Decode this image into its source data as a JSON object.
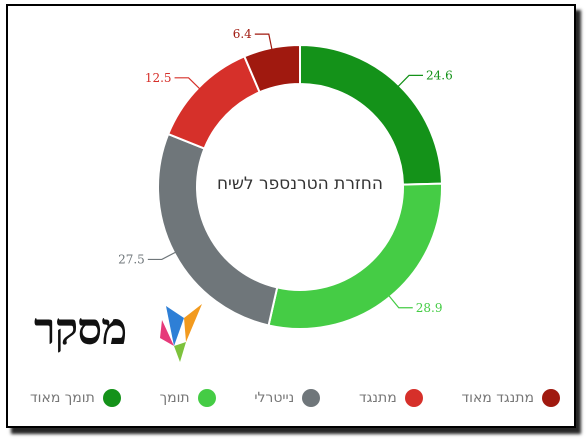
{
  "chart_data": {
    "type": "donut",
    "title": "החזרת הטרנספר לשיח",
    "categories": [
      "תומך מאוד",
      "תומך",
      "נייטרלי",
      "מתנגד",
      "מתנגד מאוד"
    ],
    "values": [
      24.6,
      28.9,
      27.5,
      12.5,
      6.4
    ],
    "colors": [
      "#149219",
      "#45cc45",
      "#6f767a",
      "#d6302a",
      "#a0190f"
    ],
    "data_labels": [
      "24.6",
      "28.9",
      "27.5",
      "12.5",
      "6.4"
    ],
    "legend_placement": "bottom"
  },
  "logo": {
    "text": "מסקר"
  },
  "legend": {
    "items": [
      {
        "label": "תומך מאוד",
        "color": "#149219"
      },
      {
        "label": "תומך",
        "color": "#45cc45"
      },
      {
        "label": "נייטרלי",
        "color": "#6f767a"
      },
      {
        "label": "מתנגד",
        "color": "#d6302a"
      },
      {
        "label": "מתנגד מאוד",
        "color": "#a0190f"
      }
    ]
  }
}
